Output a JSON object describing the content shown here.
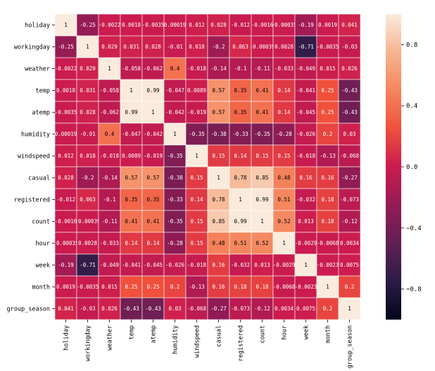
{
  "chart_data": {
    "type": "heatmap",
    "labels": [
      "holiday",
      "workingday",
      "weather",
      "temp",
      "atemp",
      "humidity",
      "windspeed",
      "casual",
      "registered",
      "count",
      "hour",
      "week",
      "month",
      "group_season"
    ],
    "values": [
      [
        "1",
        "-0.25",
        "-0.0022",
        "0.0018",
        "-0.0035",
        "0.00019",
        "0.012",
        "0.028",
        "-0.012",
        "-0.0016",
        "-0.00035",
        "-0.19",
        "0.0019",
        "0.041"
      ],
      [
        "-0.25",
        "1",
        "0.029",
        "0.031",
        "0.028",
        "-0.01",
        "0.018",
        "-0.2",
        "0.063",
        "-0.00039",
        "0.0028",
        "-0.71",
        "-0.0035",
        "-0.03"
      ],
      [
        "-0.0022",
        "0.029",
        "1",
        "-0.058",
        "-0.062",
        "0.4",
        "-0.018",
        "-0.14",
        "-0.1",
        "-0.11",
        "-0.033",
        "-0.049",
        "0.015",
        "0.026"
      ],
      [
        "0.0018",
        "0.031",
        "-0.058",
        "1",
        "0.99",
        "-0.047",
        "0.0089",
        "0.57",
        "0.35",
        "0.41",
        "0.14",
        "-0.041",
        "0.25",
        "-0.43"
      ],
      [
        "-0.0035",
        "0.028",
        "-0.062",
        "0.99",
        "1",
        "-0.042",
        "-0.019",
        "0.57",
        "0.35",
        "0.41",
        "0.14",
        "-0.045",
        "0.25",
        "-0.43"
      ],
      [
        "0.00019",
        "-0.01",
        "0.4",
        "-0.047",
        "-0.042",
        "1",
        "-0.35",
        "-0.38",
        "-0.33",
        "-0.35",
        "-0.28",
        "-0.026",
        "0.2",
        "0.03"
      ],
      [
        "0.012",
        "0.018",
        "-0.018",
        "0.0089",
        "-0.019",
        "-0.35",
        "1",
        "0.15",
        "0.14",
        "0.15",
        "0.15",
        "-0.018",
        "-0.13",
        "-0.068"
      ],
      [
        "0.028",
        "-0.2",
        "-0.14",
        "0.57",
        "0.57",
        "-0.38",
        "0.15",
        "1",
        "0.78",
        "0.85",
        "0.48",
        "0.16",
        "0.16",
        "-0.27"
      ],
      [
        "-0.012",
        "0.063",
        "-0.1",
        "0.35",
        "0.35",
        "-0.33",
        "0.14",
        "0.78",
        "1",
        "0.99",
        "0.51",
        "-0.032",
        "0.18",
        "-0.073"
      ],
      [
        "-0.0016",
        "-0.00039",
        "-0.11",
        "0.41",
        "0.41",
        "-0.35",
        "0.15",
        "0.85",
        "0.99",
        "1",
        "0.52",
        "0.013",
        "0.18",
        "-0.12"
      ],
      [
        "-0.00035",
        "0.0028",
        "-0.033",
        "0.14",
        "0.14",
        "-0.28",
        "0.15",
        "0.48",
        "0.51",
        "0.52",
        "1",
        "-0.0029",
        "-0.0068",
        "0.0034"
      ],
      [
        "-0.19",
        "-0.71",
        "-0.049",
        "-0.041",
        "-0.045",
        "-0.026",
        "-0.018",
        "0.16",
        "-0.032",
        "0.013",
        "-0.0029",
        "1",
        "-0.0023",
        "0.0075"
      ],
      [
        "0.0019",
        "-0.0035",
        "0.015",
        "0.25",
        "0.25",
        "0.2",
        "-0.13",
        "0.16",
        "0.18",
        "0.18",
        "-0.0068",
        "-0.0023",
        "1",
        "0.2"
      ],
      [
        "0.041",
        "-0.03",
        "0.026",
        "-0.43",
        "-0.43",
        "0.03",
        "-0.068",
        "-0.27",
        "-0.073",
        "-0.12",
        "0.0034",
        "0.0075",
        "0.2",
        "1"
      ]
    ],
    "vmin": -1.0,
    "vmax": 1.0,
    "colorbar_ticks": [
      {
        "value": 0.8,
        "label": "0.8"
      },
      {
        "value": 0.4,
        "label": "0.4"
      },
      {
        "value": 0.0,
        "label": "0.0"
      },
      {
        "value": -0.4,
        "label": "−0.4"
      },
      {
        "value": -0.8,
        "label": "−0.8"
      }
    ],
    "colormap": "rocket",
    "colormap_stops": [
      "#03051a",
      "#2b1c47",
      "#611f53",
      "#951b55",
      "#cb1b4f",
      "#f0503c",
      "#f5855d",
      "#f7b491",
      "#faebdd"
    ],
    "text_color_dark_cells": "#ffffff",
    "text_color_light_cells": "#000000",
    "cell_border_color": "#ffffff",
    "title": "",
    "xlabel": "",
    "ylabel": ""
  }
}
